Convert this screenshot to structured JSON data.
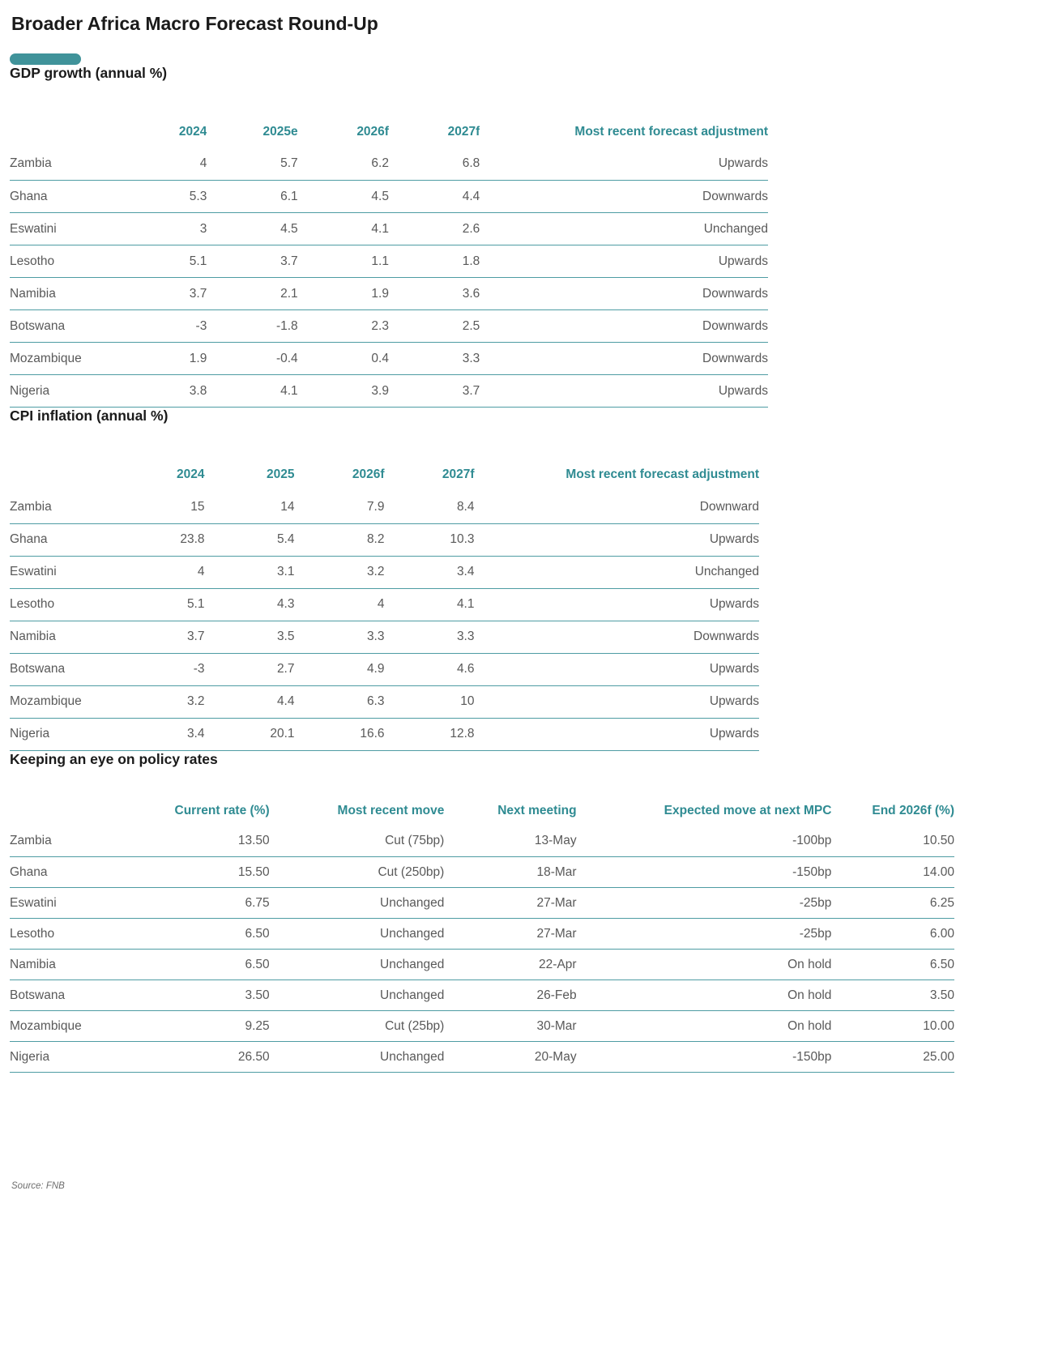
{
  "page": {
    "title": "Broader Africa Macro Forecast Round-Up",
    "source": "Source: FNB"
  },
  "colors": {
    "accent_teal": "#40939A",
    "header_text_teal": "#2F8B92",
    "row_line_teal": "#4E9CA3",
    "body_text_gray": "#595959",
    "heading_black": "#1a1a1a"
  },
  "tables": [
    {
      "id": "gdp",
      "heading": "GDP growth (annual %)",
      "columns": [
        "",
        "2024",
        "2025e",
        "2026f",
        "2027f",
        "Most recent forecast adjustment"
      ],
      "rows": [
        [
          "Zambia",
          "4",
          "5.7",
          "6.2",
          "6.8",
          "Upwards"
        ],
        [
          "Ghana",
          "5.3",
          "6.1",
          "4.5",
          "4.4",
          "Downwards"
        ],
        [
          "Eswatini",
          "3",
          "4.5",
          "4.1",
          "2.6",
          "Unchanged"
        ],
        [
          "Lesotho",
          "5.1",
          "3.7",
          "1.1",
          "1.8",
          "Upwards"
        ],
        [
          "Namibia",
          "3.7",
          "2.1",
          "1.9",
          "3.6",
          "Downwards"
        ],
        [
          "Botswana",
          "-3",
          "-1.8",
          "2.3",
          "2.5",
          "Downwards"
        ],
        [
          "Mozambique",
          "1.9",
          "-0.4",
          "0.4",
          "3.3",
          "Downwards"
        ],
        [
          "Nigeria",
          "3.8",
          "4.1",
          "3.9",
          "3.7",
          "Upwards"
        ]
      ]
    },
    {
      "id": "cpi",
      "heading": "CPI inflation (annual %)",
      "columns": [
        "",
        "2024",
        "2025",
        "2026f",
        "2027f",
        "Most recent forecast adjustment"
      ],
      "rows": [
        [
          "Zambia",
          "15",
          "14",
          "7.9",
          "8.4",
          "Downward"
        ],
        [
          "Ghana",
          "23.8",
          "5.4",
          "8.2",
          "10.3",
          "Upwards"
        ],
        [
          "Eswatini",
          "4",
          "3.1",
          "3.2",
          "3.4",
          "Unchanged"
        ],
        [
          "Lesotho",
          "5.1",
          "4.3",
          "4",
          "4.1",
          "Upwards"
        ],
        [
          "Namibia",
          "3.7",
          "3.5",
          "3.3",
          "3.3",
          "Downwards"
        ],
        [
          "Botswana",
          "-3",
          "2.7",
          "4.9",
          "4.6",
          "Upwards"
        ],
        [
          "Mozambique",
          "3.2",
          "4.4",
          "6.3",
          "10",
          "Upwards"
        ],
        [
          "Nigeria",
          "3.4",
          "20.1",
          "16.6",
          "12.8",
          "Upwards"
        ]
      ]
    },
    {
      "id": "policy",
      "heading": "Keeping an eye on policy rates",
      "columns": [
        "",
        "Current rate (%)",
        "Most recent move",
        "Next meeting",
        "Expected move at next MPC",
        "End 2026f (%)"
      ],
      "rows": [
        [
          "Zambia",
          "13.50",
          "Cut (75bp)",
          "13-May",
          "-100bp",
          "10.50"
        ],
        [
          "Ghana",
          "15.50",
          "Cut (250bp)",
          "18-Mar",
          "-150bp",
          "14.00"
        ],
        [
          "Eswatini",
          "6.75",
          "Unchanged",
          "27-Mar",
          "-25bp",
          "6.25"
        ],
        [
          "Lesotho",
          "6.50",
          "Unchanged",
          "27-Mar",
          "-25bp",
          "6.00"
        ],
        [
          "Namibia",
          "6.50",
          "Unchanged",
          "22-Apr",
          "On hold",
          "6.50"
        ],
        [
          "Botswana",
          "3.50",
          "Unchanged",
          "26-Feb",
          "On hold",
          "3.50"
        ],
        [
          "Mozambique",
          "9.25",
          "Cut (25bp)",
          "30-Mar",
          "On hold",
          "10.00"
        ],
        [
          "Nigeria",
          "26.50",
          "Unchanged",
          "20-May",
          "-150bp",
          "25.00"
        ]
      ]
    }
  ]
}
